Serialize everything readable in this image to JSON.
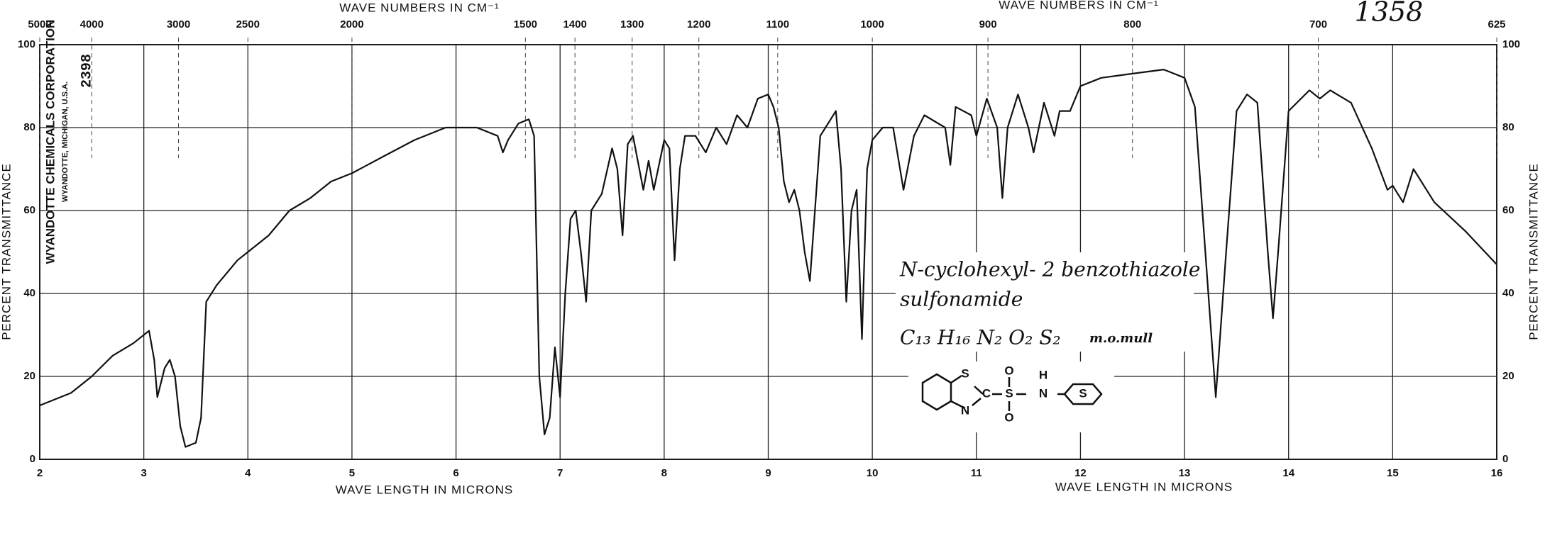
{
  "chart_data": {
    "type": "line",
    "top_axis_title": "WAVE NUMBERS IN CM⁻¹",
    "x_axis_title": "WAVE LENGTH IN MICRONS",
    "y_axis_title": "PERCENT TRANSMITTANCE",
    "spectrum_number": "1358",
    "company": "WYANDOTTE CHEMICALS CORPORATION",
    "company_location": "WYANDOTTE, MICHIGAN, U.S.A.",
    "chart_code": "2398",
    "compound_name_line1": "N-cyclohexyl- 2 benzothiazole",
    "compound_name_line2": "sulfonamide",
    "formula": "C₁₃ H₁₆ N₂ O₂ S₂",
    "sample_prep": "m.o.mull",
    "structure_atoms": [
      "S",
      "C",
      "N",
      "S",
      "O",
      "O",
      "N",
      "H",
      "S"
    ],
    "color": "#111111",
    "grid": true,
    "xlim": [
      2,
      16
    ],
    "ylim": [
      0,
      100
    ],
    "xticks": [
      2,
      3,
      4,
      5,
      6,
      7,
      8,
      9,
      10,
      11,
      12,
      13,
      14,
      15,
      16
    ],
    "yticks": [
      0,
      20,
      40,
      60,
      80,
      100
    ],
    "x2ticks": [
      5000,
      4000,
      3000,
      2500,
      2000,
      1500,
      1400,
      1300,
      1200,
      1100,
      1000,
      900,
      800,
      700,
      625
    ],
    "x": [
      2.0,
      2.3,
      2.5,
      2.7,
      2.9,
      3.05,
      3.1,
      3.13,
      3.2,
      3.25,
      3.3,
      3.35,
      3.4,
      3.5,
      3.55,
      3.6,
      3.7,
      3.9,
      4.0,
      4.2,
      4.4,
      4.6,
      4.8,
      5.0,
      5.3,
      5.6,
      5.9,
      6.2,
      6.4,
      6.45,
      6.5,
      6.6,
      6.7,
      6.75,
      6.8,
      6.85,
      6.9,
      6.95,
      7.0,
      7.05,
      7.1,
      7.15,
      7.2,
      7.25,
      7.3,
      7.4,
      7.5,
      7.55,
      7.6,
      7.65,
      7.7,
      7.8,
      7.85,
      7.9,
      8.0,
      8.05,
      8.1,
      8.15,
      8.2,
      8.3,
      8.4,
      8.5,
      8.6,
      8.7,
      8.8,
      8.9,
      9.0,
      9.05,
      9.1,
      9.15,
      9.2,
      9.25,
      9.3,
      9.35,
      9.4,
      9.5,
      9.6,
      9.65,
      9.7,
      9.75,
      9.8,
      9.85,
      9.9,
      9.95,
      10.0,
      10.1,
      10.2,
      10.3,
      10.4,
      10.5,
      10.7,
      10.75,
      10.8,
      10.95,
      11.0,
      11.1,
      11.2,
      11.25,
      11.3,
      11.4,
      11.5,
      11.55,
      11.65,
      11.75,
      11.8,
      11.9,
      12.0,
      12.2,
      12.5,
      12.8,
      13.0,
      13.1,
      13.2,
      13.3,
      13.4,
      13.5,
      13.6,
      13.7,
      13.8,
      13.85,
      13.9,
      14.0,
      14.2,
      14.3,
      14.4,
      14.6,
      14.8,
      14.95,
      15.0,
      15.1,
      15.2,
      15.4,
      15.7,
      16.0
    ],
    "values": [
      13,
      16,
      20,
      25,
      28,
      31,
      24,
      15,
      22,
      24,
      20,
      8,
      3,
      4,
      10,
      38,
      42,
      48,
      50,
      54,
      60,
      63,
      67,
      69,
      73,
      77,
      80,
      80,
      78,
      74,
      77,
      81,
      82,
      78,
      20,
      6,
      10,
      27,
      15,
      40,
      58,
      60,
      50,
      38,
      60,
      64,
      75,
      70,
      54,
      76,
      78,
      65,
      72,
      65,
      77,
      75,
      48,
      70,
      78,
      78,
      74,
      80,
      76,
      83,
      80,
      87,
      88,
      85,
      80,
      67,
      62,
      65,
      60,
      50,
      43,
      78,
      82,
      84,
      70,
      38,
      60,
      65,
      29,
      70,
      77,
      80,
      80,
      65,
      78,
      83,
      80,
      71,
      85,
      83,
      78,
      87,
      80,
      63,
      80,
      88,
      80,
      74,
      86,
      78,
      84,
      84,
      90,
      92,
      93,
      94,
      92,
      85,
      50,
      15,
      50,
      84,
      88,
      86,
      50,
      34,
      50,
      84,
      89,
      87,
      89,
      86,
      75,
      65,
      66,
      62,
      70,
      62,
      55,
      47
    ]
  }
}
